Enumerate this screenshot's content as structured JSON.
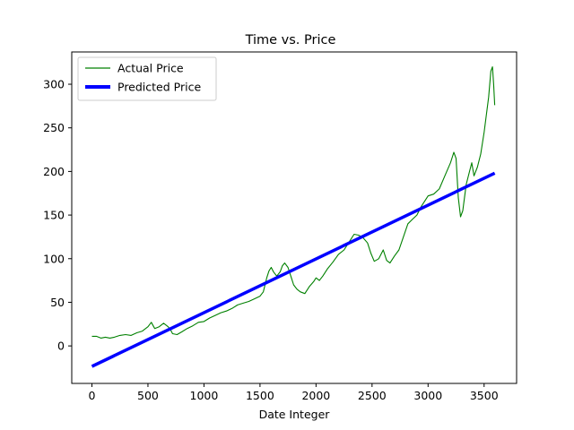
{
  "chart_data": {
    "type": "line",
    "title": "Time vs. Price",
    "xlabel": "Date Integer",
    "ylabel": "",
    "xlim": [
      -180,
      3790
    ],
    "ylim": [
      -43,
      337
    ],
    "xticks": [
      0,
      500,
      1000,
      1500,
      2000,
      2500,
      3000,
      3500
    ],
    "yticks": [
      0,
      50,
      100,
      150,
      200,
      250,
      300
    ],
    "grid": false,
    "legend": {
      "position": "top-left"
    },
    "series": [
      {
        "name": "Actual Price",
        "color": "#008000",
        "style": "thin",
        "points": [
          [
            0,
            11
          ],
          [
            40,
            11
          ],
          [
            80,
            9
          ],
          [
            120,
            10
          ],
          [
            160,
            9
          ],
          [
            200,
            10
          ],
          [
            250,
            12
          ],
          [
            300,
            13
          ],
          [
            350,
            12
          ],
          [
            400,
            15
          ],
          [
            450,
            17
          ],
          [
            500,
            22
          ],
          [
            530,
            27
          ],
          [
            560,
            20
          ],
          [
            600,
            22
          ],
          [
            640,
            26
          ],
          [
            680,
            22
          ],
          [
            700,
            19
          ],
          [
            720,
            14
          ],
          [
            760,
            13
          ],
          [
            800,
            16
          ],
          [
            850,
            20
          ],
          [
            900,
            23
          ],
          [
            950,
            27
          ],
          [
            1000,
            28
          ],
          [
            1050,
            32
          ],
          [
            1100,
            35
          ],
          [
            1150,
            38
          ],
          [
            1200,
            40
          ],
          [
            1250,
            43
          ],
          [
            1300,
            47
          ],
          [
            1350,
            49
          ],
          [
            1400,
            51
          ],
          [
            1450,
            54
          ],
          [
            1500,
            57
          ],
          [
            1530,
            62
          ],
          [
            1560,
            78
          ],
          [
            1580,
            86
          ],
          [
            1600,
            90
          ],
          [
            1620,
            85
          ],
          [
            1650,
            80
          ],
          [
            1680,
            85
          ],
          [
            1700,
            92
          ],
          [
            1720,
            95
          ],
          [
            1750,
            90
          ],
          [
            1780,
            78
          ],
          [
            1800,
            70
          ],
          [
            1830,
            65
          ],
          [
            1860,
            62
          ],
          [
            1900,
            60
          ],
          [
            1940,
            68
          ],
          [
            1980,
            74
          ],
          [
            2000,
            78
          ],
          [
            2030,
            75
          ],
          [
            2060,
            80
          ],
          [
            2100,
            88
          ],
          [
            2150,
            96
          ],
          [
            2200,
            105
          ],
          [
            2250,
            110
          ],
          [
            2300,
            120
          ],
          [
            2340,
            128
          ],
          [
            2380,
            127
          ],
          [
            2420,
            124
          ],
          [
            2460,
            118
          ],
          [
            2490,
            106
          ],
          [
            2520,
            97
          ],
          [
            2560,
            100
          ],
          [
            2600,
            110
          ],
          [
            2630,
            98
          ],
          [
            2660,
            95
          ],
          [
            2700,
            103
          ],
          [
            2740,
            110
          ],
          [
            2780,
            125
          ],
          [
            2820,
            140
          ],
          [
            2860,
            145
          ],
          [
            2900,
            150
          ],
          [
            2940,
            160
          ],
          [
            2980,
            168
          ],
          [
            3000,
            172
          ],
          [
            3050,
            174
          ],
          [
            3100,
            180
          ],
          [
            3150,
            195
          ],
          [
            3200,
            210
          ],
          [
            3230,
            222
          ],
          [
            3250,
            215
          ],
          [
            3270,
            170
          ],
          [
            3290,
            148
          ],
          [
            3310,
            155
          ],
          [
            3340,
            185
          ],
          [
            3370,
            200
          ],
          [
            3390,
            210
          ],
          [
            3410,
            195
          ],
          [
            3440,
            205
          ],
          [
            3470,
            220
          ],
          [
            3500,
            245
          ],
          [
            3520,
            265
          ],
          [
            3540,
            285
          ],
          [
            3560,
            315
          ],
          [
            3575,
            320
          ],
          [
            3585,
            300
          ],
          [
            3595,
            276
          ]
        ]
      },
      {
        "name": "Predicted Price",
        "color": "#0000ff",
        "style": "thick",
        "points": [
          [
            0,
            -23.5
          ],
          [
            3595,
            198
          ]
        ]
      }
    ]
  }
}
